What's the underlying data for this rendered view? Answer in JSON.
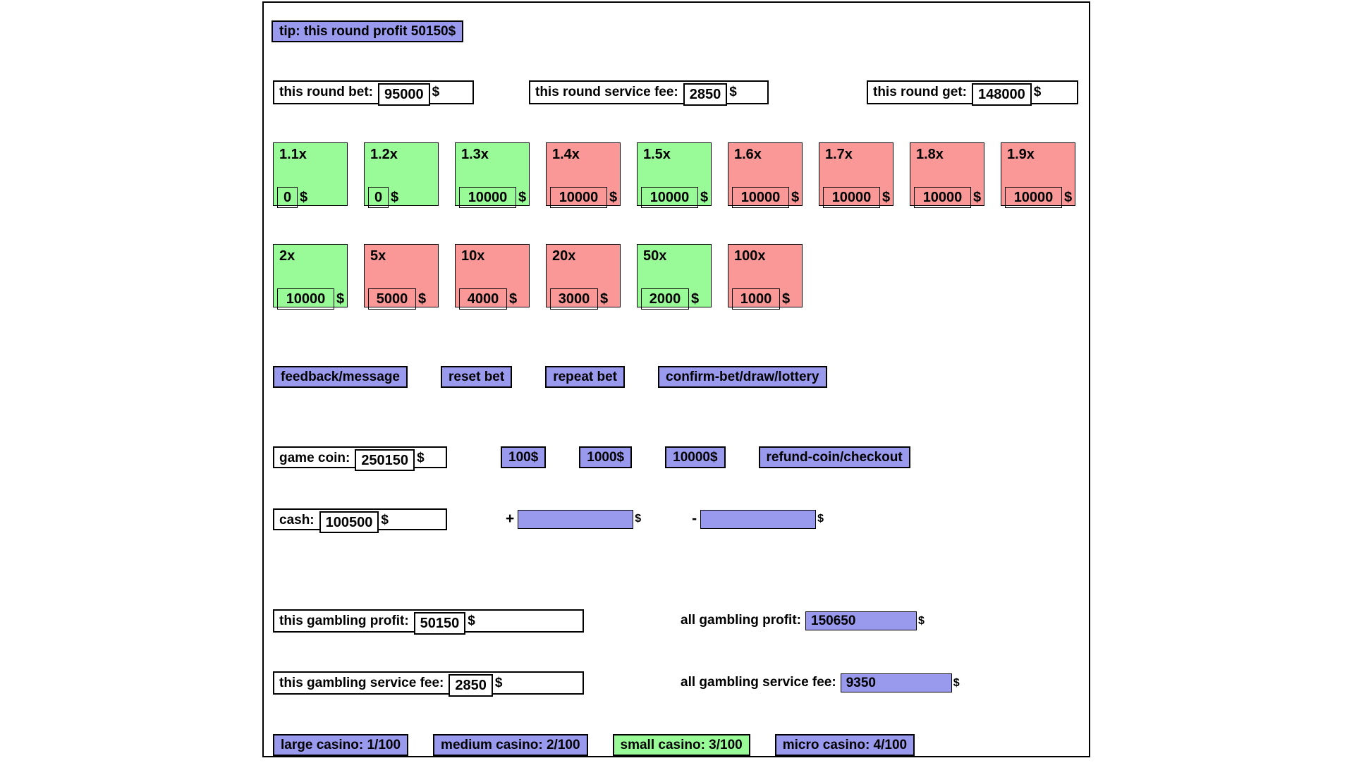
{
  "currency": "$",
  "colors": {
    "purple": "#9999ee",
    "green": "#98fb98",
    "pink": "#fa9898"
  },
  "tip": {
    "label": "tip: this round profit 50150$"
  },
  "round": {
    "bet_label": "this round bet:",
    "bet_value": "95000",
    "fee_label": "this round service fee:",
    "fee_value": "2850",
    "get_label": "this round get:",
    "get_value": "148000"
  },
  "multipliers": {
    "rows": [
      [
        {
          "label": "1.1x",
          "value": "0",
          "color": "green"
        },
        {
          "label": "1.2x",
          "value": "0",
          "color": "green"
        },
        {
          "label": "1.3x",
          "value": "10000",
          "color": "green"
        },
        {
          "label": "1.4x",
          "value": "10000",
          "color": "pink"
        },
        {
          "label": "1.5x",
          "value": "10000",
          "color": "green"
        },
        {
          "label": "1.6x",
          "value": "10000",
          "color": "pink"
        },
        {
          "label": "1.7x",
          "value": "10000",
          "color": "pink"
        },
        {
          "label": "1.8x",
          "value": "10000",
          "color": "pink"
        },
        {
          "label": "1.9x",
          "value": "10000",
          "color": "pink"
        }
      ],
      [
        {
          "label": "2x",
          "value": "10000",
          "color": "green"
        },
        {
          "label": "5x",
          "value": "5000",
          "color": "pink"
        },
        {
          "label": "10x",
          "value": "4000",
          "color": "pink"
        },
        {
          "label": "20x",
          "value": "3000",
          "color": "pink"
        },
        {
          "label": "50x",
          "value": "2000",
          "color": "green"
        },
        {
          "label": "100x",
          "value": "1000",
          "color": "pink"
        }
      ]
    ]
  },
  "actions": [
    "feedback/message",
    "reset bet",
    "repeat bet",
    "confirm-bet/draw/lottery"
  ],
  "game_coin": {
    "label": "game coin:",
    "value": "250150",
    "buttons": [
      "100$",
      "1000$",
      "10000$",
      "refund-coin/checkout"
    ]
  },
  "cash": {
    "label": "cash:",
    "value": "100500",
    "plus_sign": "+",
    "plus_value": "",
    "minus_sign": "-",
    "minus_value": ""
  },
  "gambling": {
    "profit_label": "this gambling profit:",
    "profit_value": "50150",
    "all_profit_label": "all gambling profit:",
    "all_profit_value": "150650",
    "fee_label": "this gambling service fee:",
    "fee_value": "2850",
    "all_fee_label": "all gambling service fee:",
    "all_fee_value": "9350"
  },
  "casinos": [
    {
      "label": "large casino: 1/100",
      "color": "purple"
    },
    {
      "label": "medium casino: 2/100",
      "color": "purple"
    },
    {
      "label": "small casino: 3/100",
      "color": "green"
    },
    {
      "label": "micro casino: 4/100",
      "color": "purple"
    }
  ]
}
